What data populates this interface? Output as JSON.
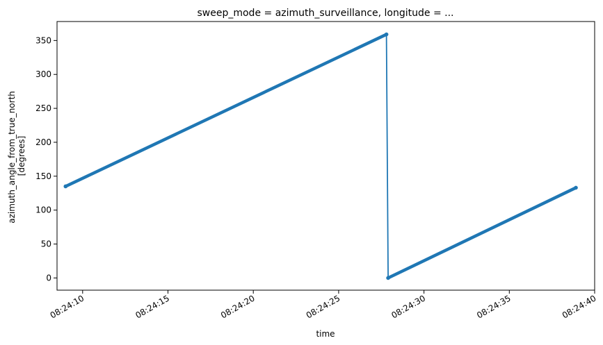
{
  "chart_data": {
    "type": "line",
    "title": "sweep_mode = azimuth_surveillance, longitude = ...",
    "xlabel": "time",
    "ylabel_lines": [
      "azimuth_angle_from_true_north",
      "[degrees]"
    ],
    "xlim": [
      "08:24:08.5",
      "08:24:40.0"
    ],
    "ylim": [
      -18,
      378
    ],
    "grid": false,
    "y_ticks": [
      0,
      50,
      100,
      150,
      200,
      250,
      300,
      350
    ],
    "x_ticks": [
      "08:24:10",
      "08:24:15",
      "08:24:20",
      "08:24:25",
      "08:24:30",
      "08:24:35",
      "08:24:40"
    ],
    "line_color": "#1f77b4",
    "series": [
      {
        "x": [
          "08:24:09.0",
          "08:24:27.8",
          "08:24:27.9",
          "08:24:38.9"
        ],
        "y": [
          135,
          359,
          0,
          133
        ]
      }
    ]
  }
}
